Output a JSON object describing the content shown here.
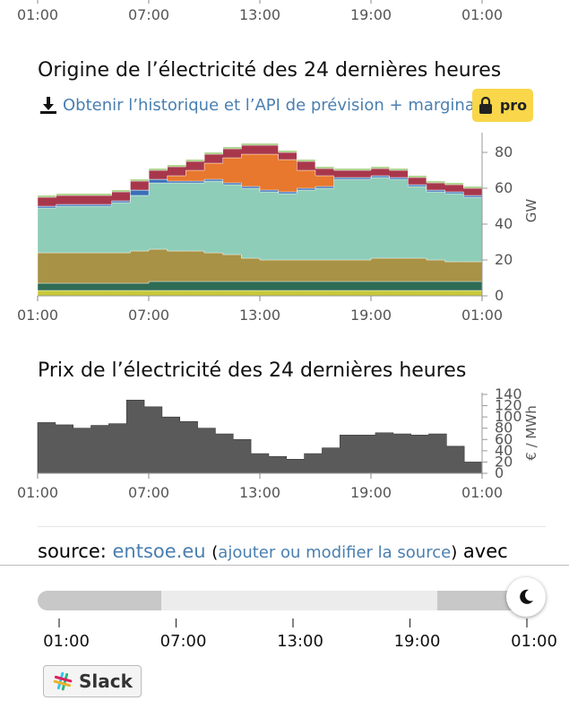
{
  "top_axis": {
    "ticks": [
      "01:00",
      "07:00",
      "13:00",
      "19:00",
      "01:00"
    ]
  },
  "origin_section": {
    "title": "Origine de l’électricité des 24 dernières heures",
    "history_link": "Obtenir l’historique et l’API de prévision + marginal",
    "pro_label": "pro",
    "download_icon": "download-icon",
    "lock_icon": "lock-icon"
  },
  "price_section": {
    "title": "Prix de l’électricité des 24 dernières heures"
  },
  "chart_data": [
    {
      "type": "area",
      "stacked": true,
      "x_ticks": [
        "01:00",
        "07:00",
        "13:00",
        "19:00",
        "01:00"
      ],
      "ylabel": "GW",
      "ylim": [
        0,
        90
      ],
      "y_ticks": [
        "0",
        "20",
        "40",
        "60",
        "80"
      ],
      "series": [
        {
          "color": "#c8c83a",
          "values": [
            3,
            3,
            3,
            3,
            3,
            3,
            3,
            3,
            3,
            3,
            3,
            3,
            3,
            3,
            3,
            3,
            3,
            3,
            3,
            3,
            3,
            3,
            3,
            3
          ]
        },
        {
          "color": "#2e6b55",
          "values": [
            4,
            4,
            4,
            4,
            4,
            4,
            5,
            5,
            5,
            5,
            5,
            5,
            5,
            5,
            5,
            5,
            5,
            5,
            5,
            5,
            5,
            5,
            5,
            5
          ]
        },
        {
          "color": "#a89245",
          "values": [
            17,
            17,
            17,
            17,
            17,
            18,
            18,
            17,
            17,
            16,
            15,
            13,
            12,
            12,
            12,
            12,
            12,
            12,
            13,
            13,
            13,
            12,
            11,
            11
          ]
        },
        {
          "color": "#8ecdb8",
          "values": [
            25,
            26,
            26,
            26,
            28,
            31,
            37,
            38,
            38,
            40,
            39,
            39,
            38,
            37,
            39,
            40,
            45,
            45,
            45,
            44,
            40,
            38,
            38,
            36
          ]
        },
        {
          "color": "#3a6fb8",
          "values": [
            1,
            1,
            1,
            1,
            1,
            3,
            2,
            1,
            1,
            1,
            1,
            1,
            1,
            1,
            1,
            1,
            1,
            1,
            1,
            1,
            1,
            1,
            1,
            1
          ]
        },
        {
          "color": "#e7782e",
          "values": [
            0,
            0,
            0,
            0,
            0,
            0,
            0,
            3,
            6,
            9,
            14,
            18,
            20,
            18,
            10,
            6,
            0,
            0,
            0,
            0,
            0,
            0,
            0,
            0
          ]
        },
        {
          "color": "#a8374c",
          "values": [
            5,
            5,
            5,
            5,
            5,
            5,
            5,
            5,
            5,
            5,
            5,
            5,
            5,
            4,
            5,
            4,
            4,
            4,
            4,
            4,
            4,
            4,
            4,
            4
          ]
        },
        {
          "color": "#9ecb7a",
          "values": [
            1,
            1,
            1,
            1,
            1,
            1,
            1,
            1,
            1,
            1,
            1,
            1,
            1,
            1,
            1,
            1,
            1,
            1,
            1,
            1,
            1,
            1,
            1,
            1
          ]
        }
      ]
    },
    {
      "type": "area",
      "x_ticks": [
        "01:00",
        "07:00",
        "13:00",
        "19:00",
        "01:00"
      ],
      "ylabel": "€ / MWh",
      "ylim": [
        0,
        140
      ],
      "y_ticks": [
        "0",
        "20",
        "40",
        "60",
        "80",
        "100",
        "120",
        "140"
      ],
      "series": [
        {
          "color": "#5a5a5a",
          "values": [
            90,
            86,
            80,
            85,
            88,
            130,
            118,
            100,
            92,
            80,
            70,
            60,
            35,
            30,
            25,
            35,
            45,
            68,
            68,
            72,
            70,
            68,
            70,
            48,
            20
          ]
        }
      ]
    }
  ],
  "source": {
    "prefix": "source:",
    "name": "entsoe.eu",
    "edit_link": "ajouter ou modifier la source",
    "suffix": "avec"
  },
  "timeline": {
    "ticks": [
      "01:00",
      "07:00",
      "13:00",
      "19:00",
      "01:00"
    ],
    "moon_icon": "moon-icon"
  },
  "slack": {
    "label": "Slack",
    "icon": "slack-icon"
  }
}
